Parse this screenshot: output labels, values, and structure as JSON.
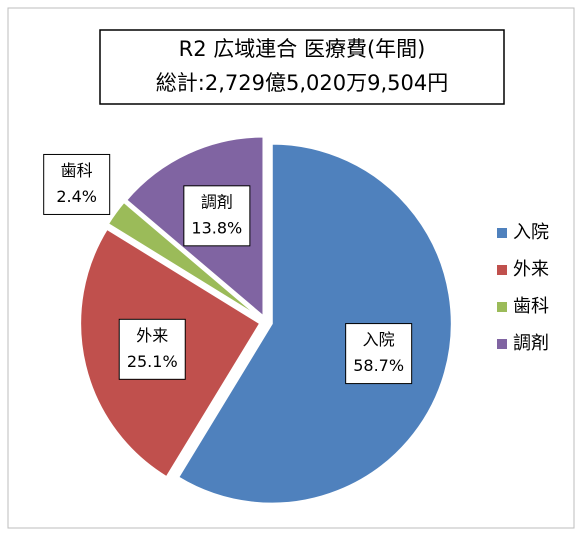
{
  "chart_data": {
    "type": "pie",
    "title": "R2 広域連合 医療費(年間)",
    "subtitle": "総計:2,729億5,020万9,504円",
    "categories": [
      "入院",
      "外来",
      "歯科",
      "調剤"
    ],
    "values": [
      58.7,
      25.1,
      2.4,
      13.8
    ],
    "value_labels": [
      "58.7%",
      "25.1%",
      "2.4%",
      "13.8%"
    ],
    "colors": [
      "#4f81bd",
      "#c0504d",
      "#9bbb59",
      "#8064a2"
    ],
    "legend": "right"
  }
}
